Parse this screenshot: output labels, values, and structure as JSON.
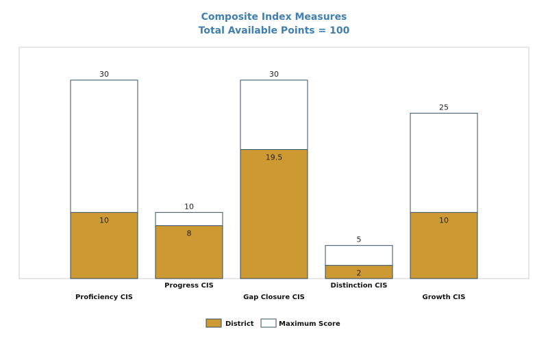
{
  "chart_data": {
    "type": "bar",
    "title": "Composite Index Measures",
    "subtitle": "Total Available Points = 100",
    "categories": [
      "Proficiency CIS",
      "Progress CIS",
      "Gap Closure CIS",
      "Distinction CIS",
      "Growth CIS"
    ],
    "series": [
      {
        "name": "District",
        "values": [
          10,
          8,
          19.5,
          2,
          10
        ],
        "value_labels": [
          "10",
          "8",
          "19.5",
          "2",
          "10"
        ]
      },
      {
        "name": "Maximum Score",
        "values": [
          30,
          10,
          30,
          5,
          25
        ],
        "value_labels": [
          "30",
          "10",
          "30",
          "5",
          "25"
        ]
      }
    ],
    "ylim": [
      0,
      30
    ],
    "xlabel": "",
    "ylabel": "",
    "grid": false,
    "legend_position": "bottom-center",
    "overlay": true,
    "colors": {
      "district_fill": "#cc9933",
      "max_fill": "#ffffff",
      "bar_stroke": "#2d4d6a",
      "plot_border": "#cccccc",
      "title": "#3f7fb2"
    }
  }
}
